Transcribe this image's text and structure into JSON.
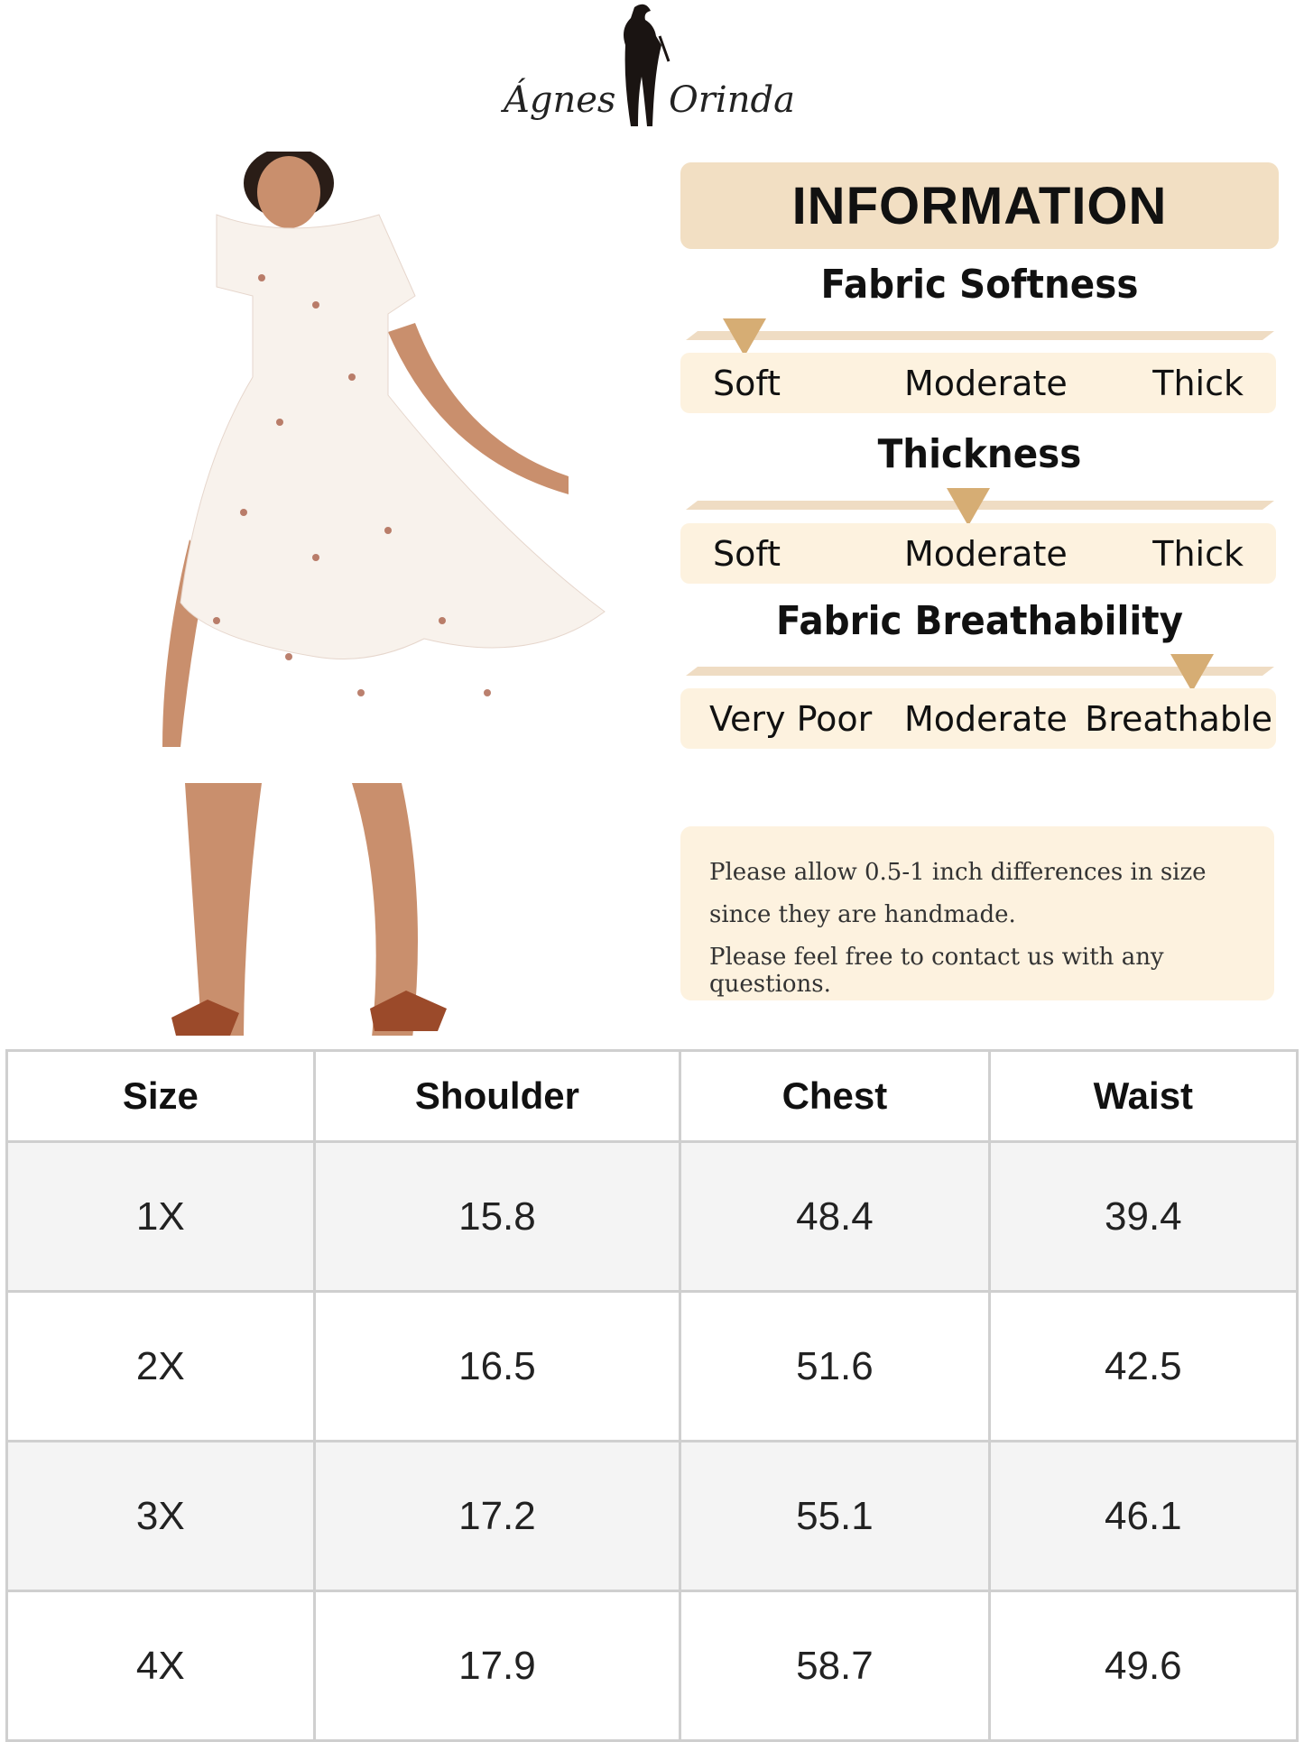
{
  "brand": {
    "logo_text": "Ágnes Orinda"
  },
  "information": {
    "title": "INFORMATION",
    "scales": [
      {
        "title": "Fabric Softness",
        "labels": [
          "Soft",
          "Moderate",
          "Thick"
        ],
        "level": 0.1
      },
      {
        "title": "Thickness",
        "labels": [
          "Soft",
          "Moderate",
          "Thick"
        ],
        "level": 0.48
      },
      {
        "title": "Fabric Breathability",
        "labels": [
          "Very Poor",
          "Moderate",
          "Breathable"
        ],
        "level": 0.86
      }
    ],
    "note": [
      "Please allow 0.5-1 inch differences in size",
      "since they are handmade.",
      "Please feel free to contact us with any questions."
    ]
  },
  "size_table": {
    "headers": [
      "Size",
      "Shoulder",
      "Chest",
      "Waist"
    ],
    "rows": [
      [
        "1X",
        "15.8",
        "48.4",
        "39.4"
      ],
      [
        "2X",
        "16.5",
        "51.6",
        "42.5"
      ],
      [
        "3X",
        "17.2",
        "55.1",
        "46.1"
      ],
      [
        "4X",
        "17.9",
        "58.7",
        "49.6"
      ]
    ]
  },
  "colors": {
    "header_bg": "#f2dfc3",
    "label_bg": "#fdf2df",
    "arrow": "#d6ad74",
    "bar": "#efdcc3"
  }
}
